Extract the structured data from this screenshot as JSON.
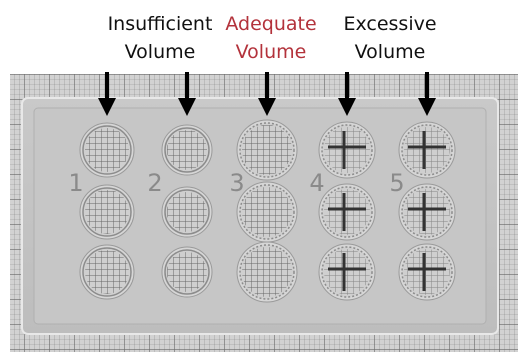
{
  "labels": [
    {
      "lines": [
        "Insufficient",
        "Volume"
      ]
    },
    {
      "lines": [
        "Adequate",
        "Volume"
      ]
    },
    {
      "lines": [
        "Excessive",
        "Volume"
      ]
    }
  ],
  "well_numbers": [
    "1",
    "2",
    "3",
    "4",
    "5"
  ]
}
